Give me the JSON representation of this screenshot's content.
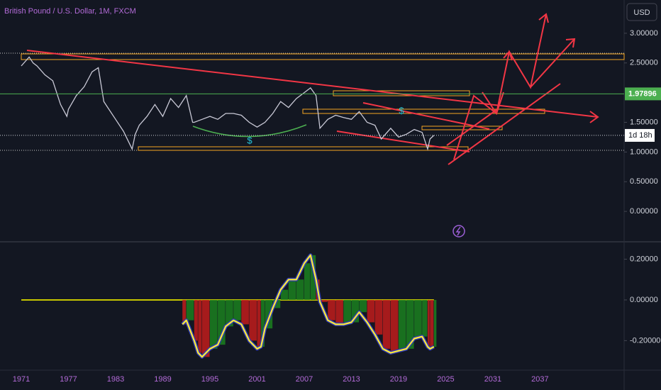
{
  "chart_data": [
    {
      "type": "line",
      "title": "British Pound / U.S. Dollar, 1M, FXCM",
      "color": "#c9c9d6",
      "x": [
        1971,
        1972,
        1972.5,
        1973,
        1974,
        1975,
        1976,
        1976.8,
        1977,
        1978,
        1979,
        1980,
        1980.8,
        1981.5,
        1982,
        1983,
        1984,
        1985.1,
        1985.5,
        1986,
        1987,
        1988,
        1989,
        1990,
        1991,
        1992,
        1992.8,
        1993,
        1994,
        1995,
        1996,
        1997,
        1998,
        1999,
        2000,
        2001,
        2002,
        2003,
        2004,
        2005,
        2006,
        2007,
        2007.8,
        2008.5,
        2009,
        2010,
        2011,
        2012,
        2013,
        2014,
        2015,
        2016,
        2016.8,
        2017,
        2018,
        2019,
        2020,
        2021,
        2022,
        2022.7,
        2023,
        2023.5
      ],
      "values": [
        2.45,
        2.6,
        2.5,
        2.45,
        2.3,
        2.2,
        1.8,
        1.6,
        1.72,
        1.95,
        2.1,
        2.35,
        2.42,
        1.85,
        1.75,
        1.55,
        1.35,
        1.05,
        1.3,
        1.45,
        1.6,
        1.8,
        1.6,
        1.9,
        1.75,
        1.95,
        1.5,
        1.5,
        1.55,
        1.6,
        1.55,
        1.65,
        1.65,
        1.62,
        1.5,
        1.42,
        1.5,
        1.65,
        1.85,
        1.75,
        1.9,
        2.0,
        2.08,
        1.95,
        1.4,
        1.55,
        1.62,
        1.58,
        1.55,
        1.68,
        1.5,
        1.45,
        1.22,
        1.25,
        1.4,
        1.25,
        1.3,
        1.38,
        1.33,
        1.05,
        1.22,
        1.28
      ],
      "xlim": [
        1968.29,
        2047.7
      ],
      "ylim": [
        -0.5,
        3.56
      ],
      "yticks": [
        {
          "value": 3,
          "label": "3.00000"
        },
        {
          "value": 2.5,
          "label": "2.50000"
        },
        {
          "value": 1.5,
          "label": "1.50000"
        },
        {
          "value": 1,
          "label": "1.00000"
        },
        {
          "value": 0.5,
          "label": "0.50000"
        },
        {
          "value": 0,
          "label": "0.00000"
        }
      ],
      "marker_line": 1.97896,
      "countdown": "1d 18h",
      "currency": "USD",
      "annotations": [
        "$",
        "$"
      ]
    },
    {
      "type": "histogram-line",
      "color": "#ffeb3b",
      "x": [
        1991.5,
        1992,
        1993,
        1993.5,
        1994,
        1995,
        1996,
        1997,
        1998,
        1999,
        2000,
        2001,
        2001.5,
        2002,
        2003,
        2004,
        2005,
        2006,
        2007,
        2007.8,
        2008.5,
        2009,
        2010,
        2011,
        2012,
        2013,
        2014,
        2015,
        2016,
        2017,
        2018,
        2019,
        2020,
        2021,
        2022,
        2022.7,
        2023,
        2023.5
      ],
      "values": [
        -0.12,
        -0.1,
        -0.2,
        -0.26,
        -0.28,
        -0.24,
        -0.22,
        -0.13,
        -0.1,
        -0.12,
        -0.2,
        -0.24,
        -0.23,
        -0.14,
        -0.04,
        0.05,
        0.1,
        0.1,
        0.18,
        0.22,
        0.1,
        -0.01,
        -0.1,
        -0.12,
        -0.12,
        -0.11,
        -0.06,
        -0.11,
        -0.17,
        -0.24,
        -0.26,
        -0.25,
        -0.24,
        -0.19,
        -0.18,
        -0.23,
        -0.24,
        -0.23
      ],
      "xlim": [
        1968.29,
        2047.7
      ],
      "ylim": [
        -0.338,
        0.282
      ],
      "yticks": [
        {
          "value": 0.2,
          "label": "0.20000"
        },
        {
          "value": 0,
          "label": "0.00000"
        },
        {
          "value": -0.2,
          "label": "-0.20000"
        }
      ],
      "xticks": [
        1971,
        1977,
        1983,
        1989,
        1995,
        2001,
        2007,
        2013,
        2019,
        2025,
        2031,
        2037
      ]
    }
  ]
}
